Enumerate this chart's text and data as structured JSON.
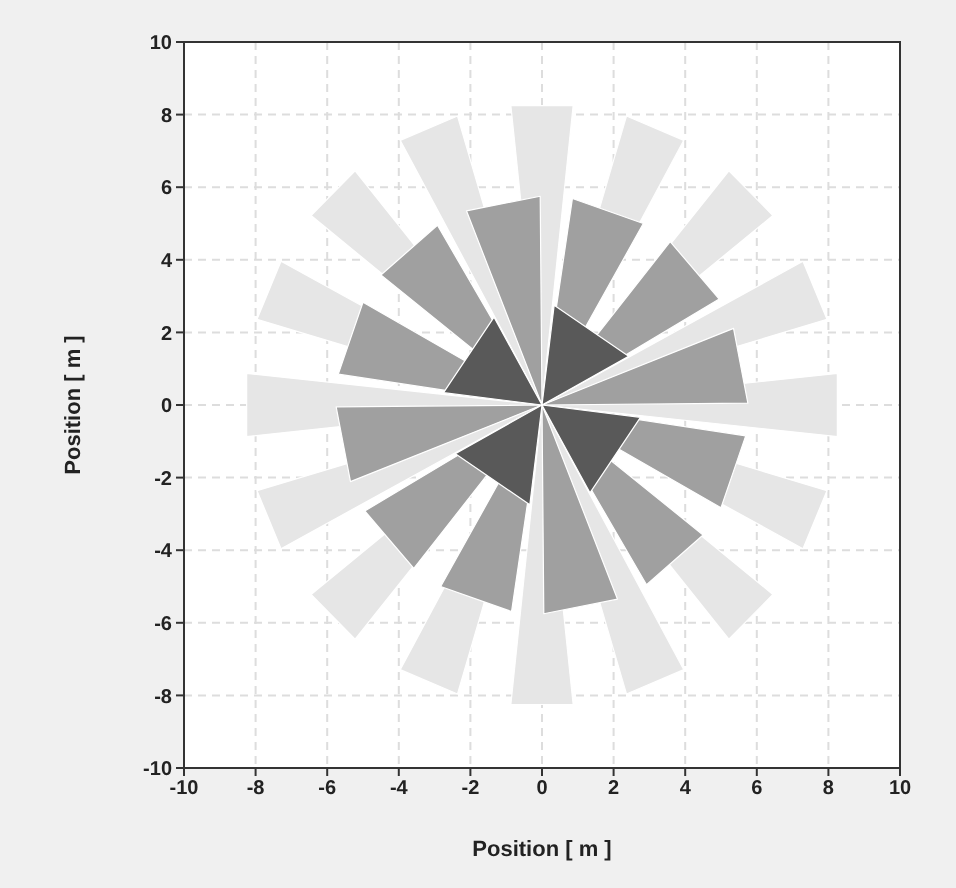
{
  "chart_data": {
    "type": "area",
    "xlabel": "Position [ m ]",
    "ylabel": "Position [ m ]",
    "xlim": [
      -10,
      10
    ],
    "ylim": [
      -10,
      10
    ],
    "xticks": [
      -10,
      -8,
      -6,
      -4,
      -2,
      0,
      2,
      4,
      6,
      8,
      10
    ],
    "yticks": [
      -10,
      -8,
      -6,
      -4,
      -2,
      0,
      2,
      4,
      6,
      8,
      10
    ],
    "grid": true,
    "series": [
      {
        "color": "#e6e6e6",
        "x": [
          0,
          8.25,
          8.25,
          null,
          0,
          7.96,
          7.29,
          null,
          0,
          6.45,
          5.22,
          null,
          0,
          3.96,
          2.36,
          null,
          0,
          0.87,
          -0.87,
          null,
          0,
          -2.36,
          -3.96,
          null,
          0,
          -5.22,
          -6.45,
          null,
          0,
          -7.29,
          -7.96,
          null,
          0,
          -8.25,
          -8.25,
          null,
          0,
          -7.96,
          -7.29,
          null,
          0,
          -6.45,
          -5.22,
          null,
          0,
          -3.96,
          -2.36,
          null,
          0,
          -0.87,
          0.87,
          null,
          0,
          2.36,
          3.96,
          null,
          0,
          5.22,
          6.45,
          null,
          0,
          7.29,
          7.96
        ],
        "values": [
          0,
          -0.87,
          0.87,
          null,
          0,
          2.36,
          3.96,
          null,
          0,
          5.22,
          6.45,
          null,
          0,
          7.29,
          7.96,
          null,
          0,
          8.25,
          8.25,
          null,
          0,
          7.96,
          7.29,
          null,
          0,
          6.45,
          5.22,
          null,
          0,
          3.96,
          2.36,
          null,
          0,
          0.87,
          -0.87,
          null,
          0,
          -2.36,
          -3.96,
          null,
          0,
          -5.22,
          -6.45,
          null,
          0,
          -7.29,
          -7.96,
          null,
          0,
          -8.25,
          -8.25,
          null,
          0,
          -7.96,
          -7.29,
          null,
          0,
          -6.45,
          -5.22,
          null,
          0,
          -3.96,
          -2.36
        ]
      },
      {
        "color": "#a0a0a0",
        "x": [
          0,
          5.75,
          5.35,
          null,
          0,
          4.95,
          3.58,
          null,
          0,
          2.83,
          0.85,
          null,
          0,
          -0.05,
          -2.11,
          null,
          0,
          -2.92,
          -4.5,
          null,
          0,
          -5.0,
          -5.69,
          null,
          0,
          -5.75,
          -5.35,
          null,
          0,
          -4.95,
          -3.58,
          null,
          0,
          -2.83,
          -0.85,
          null,
          0,
          0.05,
          2.11,
          null,
          0,
          2.92,
          4.5,
          null,
          0,
          5.0,
          5.69
        ],
        "values": [
          0,
          0.05,
          2.11,
          null,
          0,
          2.92,
          4.5,
          null,
          0,
          5.0,
          5.69,
          null,
          0,
          5.75,
          5.35,
          null,
          0,
          4.95,
          3.58,
          null,
          0,
          2.83,
          0.85,
          null,
          0,
          -0.05,
          -2.11,
          null,
          0,
          -2.92,
          -4.5,
          null,
          0,
          -5.0,
          -5.69,
          null,
          0,
          -5.75,
          -5.35,
          null,
          0,
          -4.95,
          -3.58,
          null,
          0,
          -2.83,
          -0.85
        ]
      },
      {
        "color": "#595959",
        "x": [
          0,
          2.42,
          0.34,
          null,
          0,
          -1.34,
          -2.75,
          null,
          0,
          -2.42,
          -0.34,
          null,
          0,
          1.34,
          2.75
        ],
        "values": [
          0,
          1.34,
          2.75,
          null,
          0,
          2.42,
          0.34,
          null,
          0,
          -1.34,
          -2.75,
          null,
          0,
          -2.42,
          -0.34
        ]
      }
    ]
  }
}
